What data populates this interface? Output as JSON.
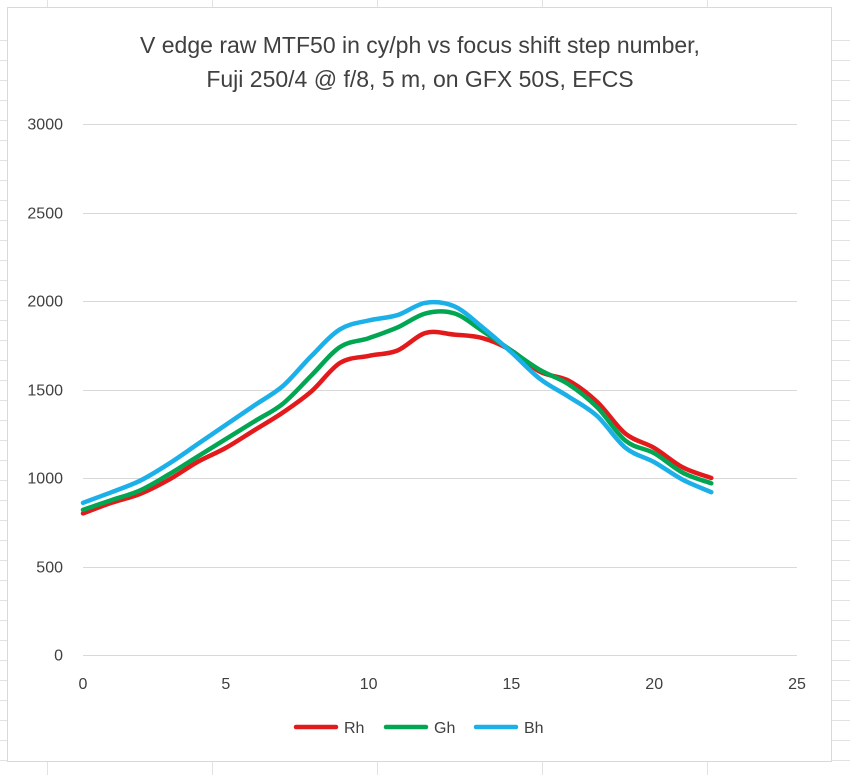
{
  "chart_data": {
    "type": "line",
    "title": [
      "V edge raw MTF50 in cy/ph vs focus shift step number,",
      "Fuji 250/4 @ f/8, 5 m, on GFX 50S, EFCS"
    ],
    "xlabel": "",
    "ylabel": "",
    "xlim": [
      0,
      25
    ],
    "ylim": [
      0,
      3000
    ],
    "xticks": [
      0,
      5,
      10,
      15,
      20,
      25
    ],
    "yticks": [
      0,
      500,
      1000,
      1500,
      2000,
      2500,
      3000
    ],
    "grid": "horizontal",
    "legend_position": "bottom",
    "x": [
      0,
      1,
      2,
      3,
      4,
      5,
      6,
      7,
      8,
      9,
      10,
      11,
      12,
      13,
      14,
      15,
      16,
      17,
      18,
      19,
      20,
      21,
      22
    ],
    "series": [
      {
        "name": "Rh",
        "color": "#e31a1c",
        "values": [
          800,
          860,
          910,
          990,
          1090,
          1170,
          1270,
          1370,
          1490,
          1650,
          1690,
          1720,
          1820,
          1810,
          1790,
          1720,
          1600,
          1550,
          1430,
          1250,
          1170,
          1060,
          1000
        ]
      },
      {
        "name": "Gh",
        "color": "#00a651",
        "values": [
          820,
          875,
          930,
          1020,
          1120,
          1220,
          1320,
          1420,
          1580,
          1740,
          1790,
          1850,
          1930,
          1930,
          1830,
          1720,
          1610,
          1530,
          1400,
          1210,
          1140,
          1030,
          970
        ]
      },
      {
        "name": "Bh",
        "color": "#1cb0e8",
        "values": [
          860,
          920,
          985,
          1080,
          1190,
          1300,
          1410,
          1520,
          1690,
          1840,
          1890,
          1920,
          1990,
          1970,
          1850,
          1710,
          1560,
          1460,
          1350,
          1170,
          1090,
          990,
          920
        ]
      }
    ]
  }
}
